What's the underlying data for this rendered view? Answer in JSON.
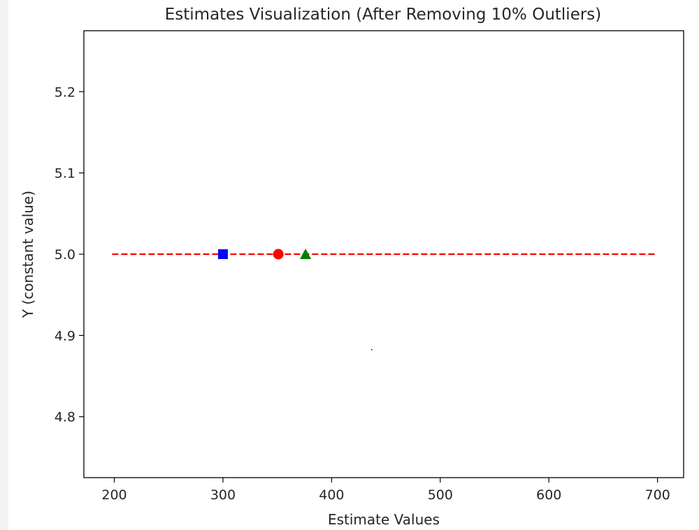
{
  "chart_data": {
    "type": "scatter",
    "title": "Estimates Visualization (After Removing 10% Outliers)",
    "xlabel": "Estimate Values",
    "ylabel": "Y (constant value)",
    "xlim": [
      172,
      724
    ],
    "ylim": [
      4.725,
      5.275
    ],
    "x_ticks": [
      200,
      300,
      400,
      500,
      600,
      700
    ],
    "y_ticks": [
      4.8,
      4.9,
      5.0,
      5.1,
      5.2
    ],
    "grid": false,
    "legend": "none",
    "reference_line": {
      "x": [
        198,
        698
      ],
      "y": 5.0,
      "color": "#ff0000",
      "style": "dashed"
    },
    "points": [
      {
        "x": 300,
        "y": 5.0,
        "marker": "square",
        "color": "#0000ff"
      },
      {
        "x": 351,
        "y": 5.0,
        "marker": "circle",
        "color": "#ff0000"
      },
      {
        "x": 376,
        "y": 5.0,
        "marker": "triangle",
        "color": "#008000"
      }
    ]
  }
}
